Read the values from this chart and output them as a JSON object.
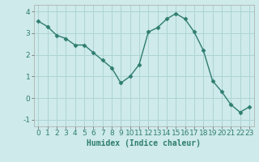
{
  "x": [
    0,
    1,
    2,
    3,
    4,
    5,
    6,
    7,
    8,
    9,
    10,
    11,
    12,
    13,
    14,
    15,
    16,
    17,
    18,
    19,
    20,
    21,
    22,
    23
  ],
  "y": [
    3.55,
    3.3,
    2.9,
    2.75,
    2.45,
    2.45,
    2.1,
    1.75,
    1.4,
    0.7,
    1.0,
    1.55,
    3.05,
    3.25,
    3.65,
    3.9,
    3.65,
    3.05,
    2.2,
    0.8,
    0.3,
    -0.3,
    -0.65,
    -0.4
  ],
  "line_color": "#2e7d6e",
  "marker": "D",
  "marker_size": 2.5,
  "line_width": 1.0,
  "bg_color": "#ceeaea",
  "grid_color": "#aed4d4",
  "xlabel": "Humidex (Indice chaleur)",
  "xlabel_fontsize": 7,
  "tick_fontsize": 6.5,
  "xlim": [
    -0.5,
    23.5
  ],
  "ylim": [
    -1.3,
    4.3
  ],
  "yticks": [
    -1,
    0,
    1,
    2,
    3,
    4
  ],
  "xticks": [
    0,
    1,
    2,
    3,
    4,
    5,
    6,
    7,
    8,
    9,
    10,
    11,
    12,
    13,
    14,
    15,
    16,
    17,
    18,
    19,
    20,
    21,
    22,
    23
  ]
}
